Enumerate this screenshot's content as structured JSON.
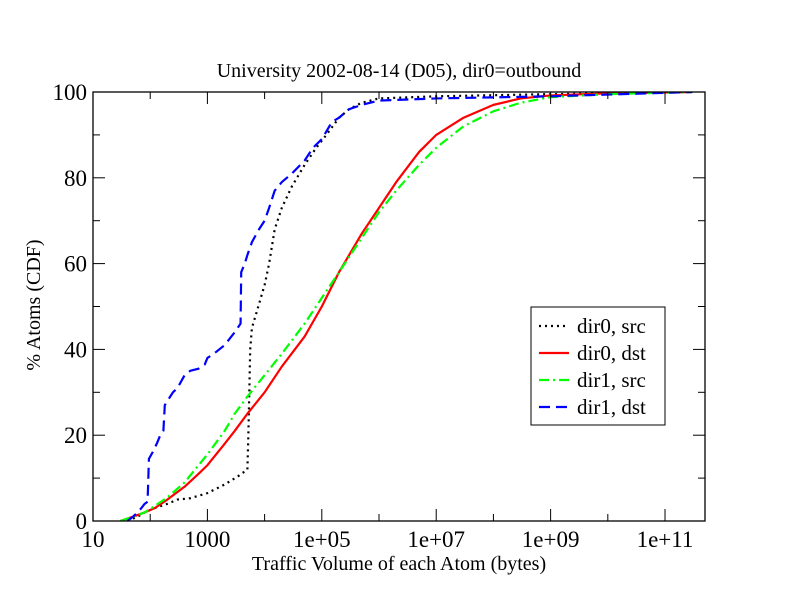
{
  "chart_data": {
    "type": "line",
    "title": "University 2002-08-14 (D05), dir0=outbound",
    "xlabel": "Traffic Volume of each Atom (bytes)",
    "ylabel": "% Atoms (CDF)",
    "xscale": "log",
    "xlim": [
      10,
      500000000000
    ],
    "ylim": [
      0,
      100
    ],
    "x_ticks": [
      10,
      1000,
      100000,
      10000000,
      1000000000,
      100000000000
    ],
    "x_tick_labels": [
      "10",
      "1000",
      "1e+05",
      "1e+07",
      "1e+09",
      "1e+11"
    ],
    "y_ticks": [
      0,
      20,
      40,
      60,
      80,
      100
    ],
    "y_tick_labels": [
      "0",
      "20",
      "40",
      "60",
      "80",
      "100"
    ],
    "grid": false,
    "legend_position": "right",
    "series": [
      {
        "name": "dir0, src",
        "color": "#000000",
        "dash": "dotted",
        "points": [
          [
            40,
            0
          ],
          [
            60,
            1
          ],
          [
            80,
            2
          ],
          [
            120,
            3
          ],
          [
            200,
            4
          ],
          [
            300,
            5
          ],
          [
            500,
            5.3
          ],
          [
            1000,
            6.5
          ],
          [
            2000,
            8.5
          ],
          [
            3500,
            10.5
          ],
          [
            5000,
            12
          ],
          [
            5200,
            20
          ],
          [
            5400,
            30
          ],
          [
            5600,
            40
          ],
          [
            6000,
            45
          ],
          [
            7000,
            48
          ],
          [
            10000,
            55
          ],
          [
            12000,
            60
          ],
          [
            15000,
            68
          ],
          [
            20000,
            73
          ],
          [
            30000,
            78
          ],
          [
            50000,
            83
          ],
          [
            80000,
            87
          ],
          [
            120000,
            90
          ],
          [
            200000,
            94
          ],
          [
            300000,
            96
          ],
          [
            500000,
            97.5
          ],
          [
            1000000,
            98.5
          ],
          [
            10000000,
            99
          ],
          [
            1000000000,
            99.5
          ],
          [
            300000000000,
            100
          ]
        ]
      },
      {
        "name": "dir0, dst",
        "color": "#ff0000",
        "dash": "solid",
        "points": [
          [
            30,
            0
          ],
          [
            50,
            1
          ],
          [
            80,
            2
          ],
          [
            120,
            3
          ],
          [
            200,
            5
          ],
          [
            400,
            8
          ],
          [
            700,
            11
          ],
          [
            1000,
            13
          ],
          [
            2000,
            18
          ],
          [
            3000,
            21
          ],
          [
            5000,
            25
          ],
          [
            10000,
            30
          ],
          [
            20000,
            36
          ],
          [
            50000,
            43
          ],
          [
            100000,
            50
          ],
          [
            200000,
            58
          ],
          [
            500000,
            67
          ],
          [
            1000000,
            73
          ],
          [
            2000000,
            79
          ],
          [
            5000000,
            86
          ],
          [
            10000000,
            90
          ],
          [
            30000000,
            94
          ],
          [
            100000000,
            97
          ],
          [
            300000000,
            98.5
          ],
          [
            1000000000,
            99.2
          ],
          [
            10000000000,
            99.7
          ],
          [
            300000000000,
            100
          ]
        ]
      },
      {
        "name": "dir1, src",
        "color": "#00ff00",
        "dash": "dashdot",
        "points": [
          [
            30,
            0
          ],
          [
            50,
            1
          ],
          [
            80,
            2
          ],
          [
            120,
            3.5
          ],
          [
            200,
            5.5
          ],
          [
            400,
            9
          ],
          [
            700,
            13
          ],
          [
            1000,
            15.5
          ],
          [
            2000,
            21
          ],
          [
            3000,
            25
          ],
          [
            5000,
            29
          ],
          [
            10000,
            34
          ],
          [
            20000,
            39
          ],
          [
            50000,
            46
          ],
          [
            100000,
            52
          ],
          [
            200000,
            58
          ],
          [
            500000,
            66
          ],
          [
            1000000,
            72
          ],
          [
            2000000,
            77
          ],
          [
            5000000,
            83
          ],
          [
            10000000,
            87
          ],
          [
            30000000,
            92
          ],
          [
            100000000,
            95.5
          ],
          [
            300000000,
            97.5
          ],
          [
            1000000000,
            98.8
          ],
          [
            10000000000,
            99.5
          ],
          [
            300000000000,
            100
          ]
        ]
      },
      {
        "name": "dir1, dst",
        "color": "#0000ff",
        "dash": "dashed",
        "points": [
          [
            40,
            0
          ],
          [
            50,
            1
          ],
          [
            60,
            2
          ],
          [
            70,
            3
          ],
          [
            80,
            4
          ],
          [
            90,
            4.5
          ],
          [
            95,
            14.5
          ],
          [
            110,
            16
          ],
          [
            130,
            18
          ],
          [
            150,
            20
          ],
          [
            170,
            21
          ],
          [
            180,
            27
          ],
          [
            200,
            28
          ],
          [
            250,
            30
          ],
          [
            300,
            31
          ],
          [
            400,
            34
          ],
          [
            500,
            35
          ],
          [
            700,
            35.5
          ],
          [
            900,
            36.5
          ],
          [
            1000,
            38
          ],
          [
            1300,
            39
          ],
          [
            2000,
            41
          ],
          [
            3000,
            44
          ],
          [
            3800,
            46
          ],
          [
            3900,
            58
          ],
          [
            4500,
            60
          ],
          [
            5000,
            62
          ],
          [
            6000,
            65
          ],
          [
            8000,
            68
          ],
          [
            10000,
            70
          ],
          [
            12000,
            73
          ],
          [
            15000,
            77
          ],
          [
            20000,
            79
          ],
          [
            30000,
            81
          ],
          [
            50000,
            84
          ],
          [
            70000,
            87
          ],
          [
            100000,
            89
          ],
          [
            150000,
            93
          ],
          [
            200000,
            94
          ],
          [
            300000,
            96
          ],
          [
            500000,
            97
          ],
          [
            1000000,
            98
          ],
          [
            10000000,
            98.5
          ],
          [
            1000000000,
            99
          ],
          [
            300000000000,
            100
          ]
        ]
      }
    ]
  }
}
